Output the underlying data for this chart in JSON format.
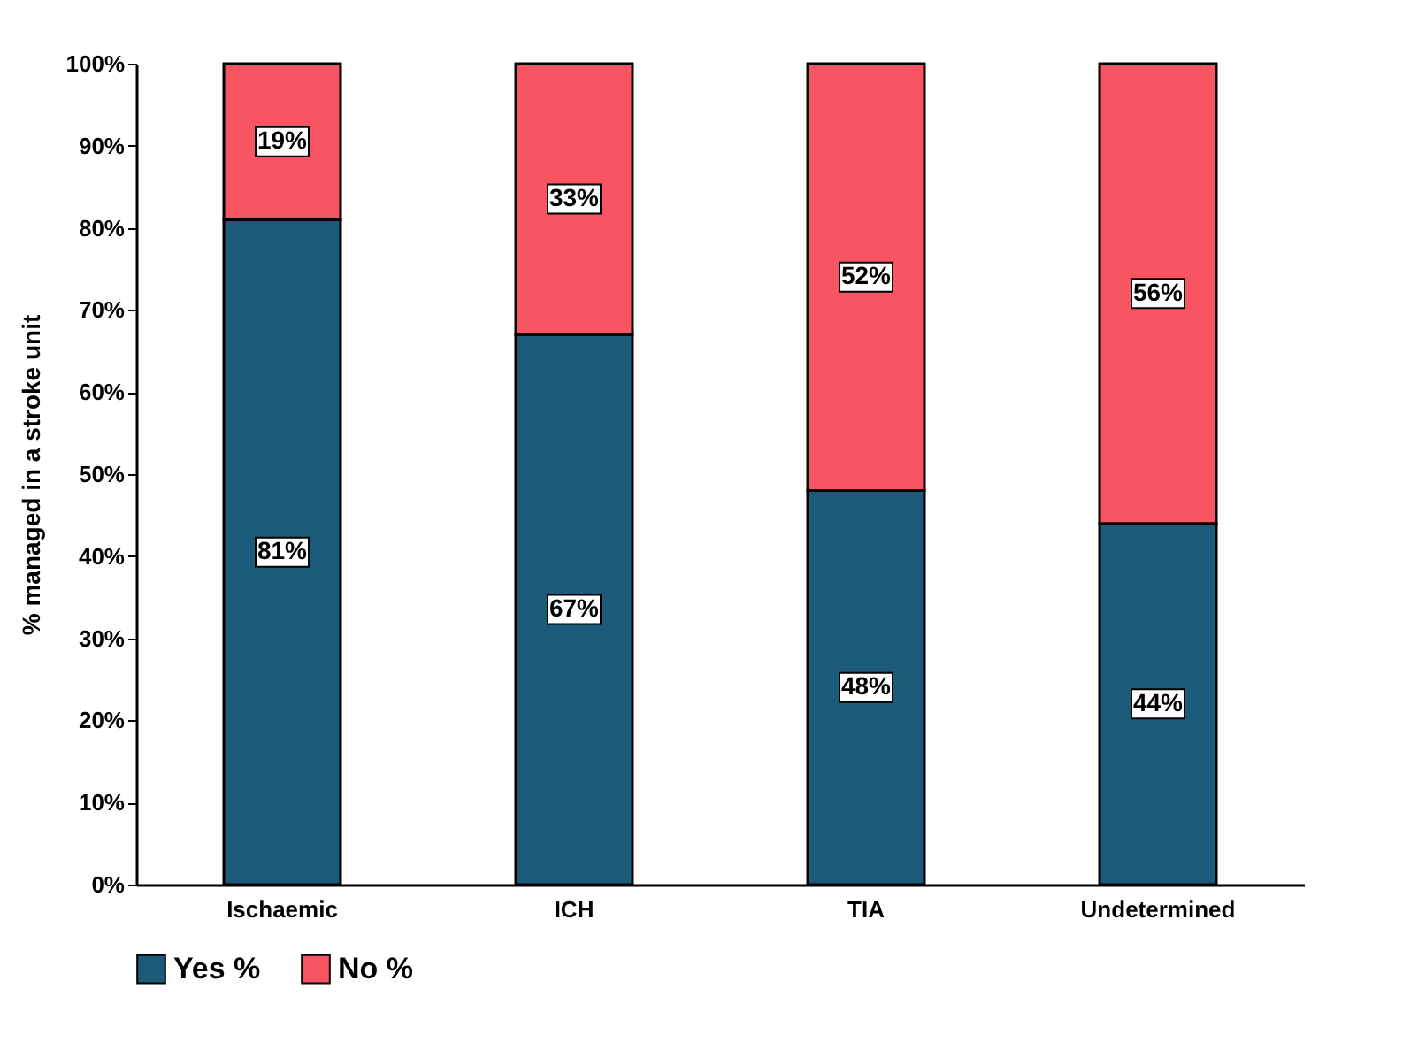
{
  "chart_data": {
    "type": "bar",
    "stacked": true,
    "ylabel": "% managed in a stroke unit",
    "categories": [
      "Ischaemic",
      "ICH",
      "TIA",
      "Undetermined"
    ],
    "series": [
      {
        "name": "Yes %",
        "color": "#1b5a78",
        "values": [
          81,
          67,
          48,
          44
        ],
        "value_labels": [
          "81%",
          "67%",
          "48%",
          "44%"
        ]
      },
      {
        "name": "No %",
        "color": "#f95462",
        "values": [
          19,
          33,
          52,
          56
        ],
        "value_labels": [
          "19%",
          "33%",
          "52%",
          "56%"
        ]
      }
    ],
    "ylim": [
      0,
      100
    ],
    "yticks": [
      {
        "value": 0,
        "label": "0%"
      },
      {
        "value": 10,
        "label": "10%"
      },
      {
        "value": 20,
        "label": "20%"
      },
      {
        "value": 30,
        "label": "30%"
      },
      {
        "value": 40,
        "label": "40%"
      },
      {
        "value": 50,
        "label": "50%"
      },
      {
        "value": 60,
        "label": "60%"
      },
      {
        "value": 70,
        "label": "70%"
      },
      {
        "value": 80,
        "label": "80%"
      },
      {
        "value": 90,
        "label": "90%"
      },
      {
        "value": 100,
        "label": "100%"
      }
    ],
    "grid": false,
    "legend": "bottom"
  }
}
